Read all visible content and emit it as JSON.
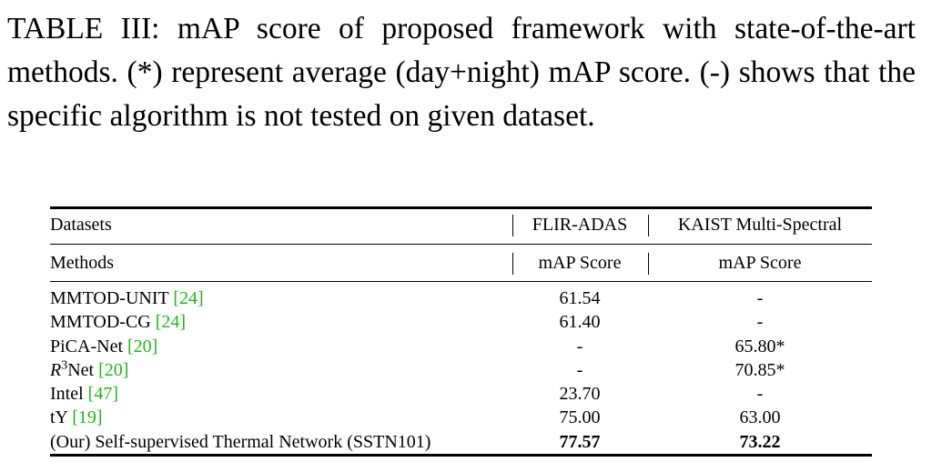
{
  "caption": "TABLE III: mAP score of proposed framework with state-of-the-art methods. (*) represent average (day+night) mAP score. (-) shows that the specific algorithm is not tested on given dataset.",
  "table": {
    "header": [
      [
        "Datasets",
        "FLIR-ADAS",
        "KAIST Multi-Spectral"
      ],
      [
        "Methods",
        "mAP Score",
        "mAP Score"
      ]
    ],
    "rows": [
      {
        "method": "MMTOD-UNIT",
        "cite": "[24]",
        "flir": "61.54",
        "kaist": "-"
      },
      {
        "method": "MMTOD-CG",
        "cite": "[24]",
        "flir": "61.40",
        "kaist": "-"
      },
      {
        "method": "PiCA-Net",
        "cite": "[20]",
        "flir": "-",
        "kaist": "65.80*"
      },
      {
        "method": {
          "base": "R",
          "sup": "3",
          "rest": "Net"
        },
        "cite": "[20]",
        "flir": "-",
        "kaist": "70.85*"
      },
      {
        "method": "Intel",
        "cite": "[47]",
        "flir": "23.70",
        "kaist": "-"
      },
      {
        "method": "tY",
        "cite": "[19]",
        "flir": "75.00",
        "kaist": "63.00"
      },
      {
        "method": "(Our) Self-supervised Thermal Network (SSTN101)",
        "flir": "77.57",
        "kaist": "73.22",
        "bold": true
      }
    ]
  }
}
